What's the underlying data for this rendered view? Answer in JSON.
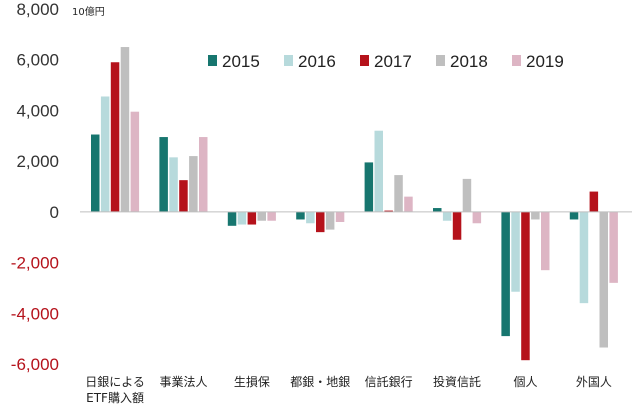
{
  "chart_data": {
    "type": "bar",
    "unit": "10億円",
    "categories": [
      [
        "日銀による",
        "ETF購入額"
      ],
      [
        "事業法人"
      ],
      [
        "生損保"
      ],
      [
        "都銀・地銀"
      ],
      [
        "信託銀行"
      ],
      [
        "投資信託"
      ],
      [
        "個人"
      ],
      [
        "外国人"
      ]
    ],
    "series": [
      {
        "name": "2015",
        "color": "#17766f",
        "values": [
          3050,
          2950,
          -550,
          -300,
          1950,
          150,
          -4900,
          -300
        ]
      },
      {
        "name": "2016",
        "color": "#b7dadc",
        "values": [
          4550,
          2150,
          -500,
          -450,
          3200,
          -350,
          -3150,
          -3600
        ]
      },
      {
        "name": "2017",
        "color": "#b5121b",
        "values": [
          5900,
          1250,
          -500,
          -800,
          50,
          -1100,
          -5850,
          800
        ]
      },
      {
        "name": "2018",
        "color": "#bfbfbf",
        "values": [
          6500,
          2200,
          -350,
          -700,
          1450,
          1300,
          -300,
          -5350
        ]
      },
      {
        "name": "2019",
        "color": "#ddb5c4",
        "values": [
          3950,
          2950,
          -350,
          -400,
          600,
          -450,
          -2300,
          -2800
        ]
      }
    ],
    "ylim": [
      -6000,
      8000
    ],
    "yticks": [
      {
        "value": 8000,
        "label": "8,000"
      },
      {
        "value": 6000,
        "label": "6,000"
      },
      {
        "value": 4000,
        "label": "4,000"
      },
      {
        "value": 2000,
        "label": "2,000"
      },
      {
        "value": 0,
        "label": "0"
      },
      {
        "value": -2000,
        "label": "-2,000"
      },
      {
        "value": -4000,
        "label": "-4,000"
      },
      {
        "value": -6000,
        "label": "-6,000"
      }
    ],
    "negative_tick_color": "#b5121b",
    "positive_tick_color": "#333333",
    "grid": false,
    "legend": "top-right"
  }
}
